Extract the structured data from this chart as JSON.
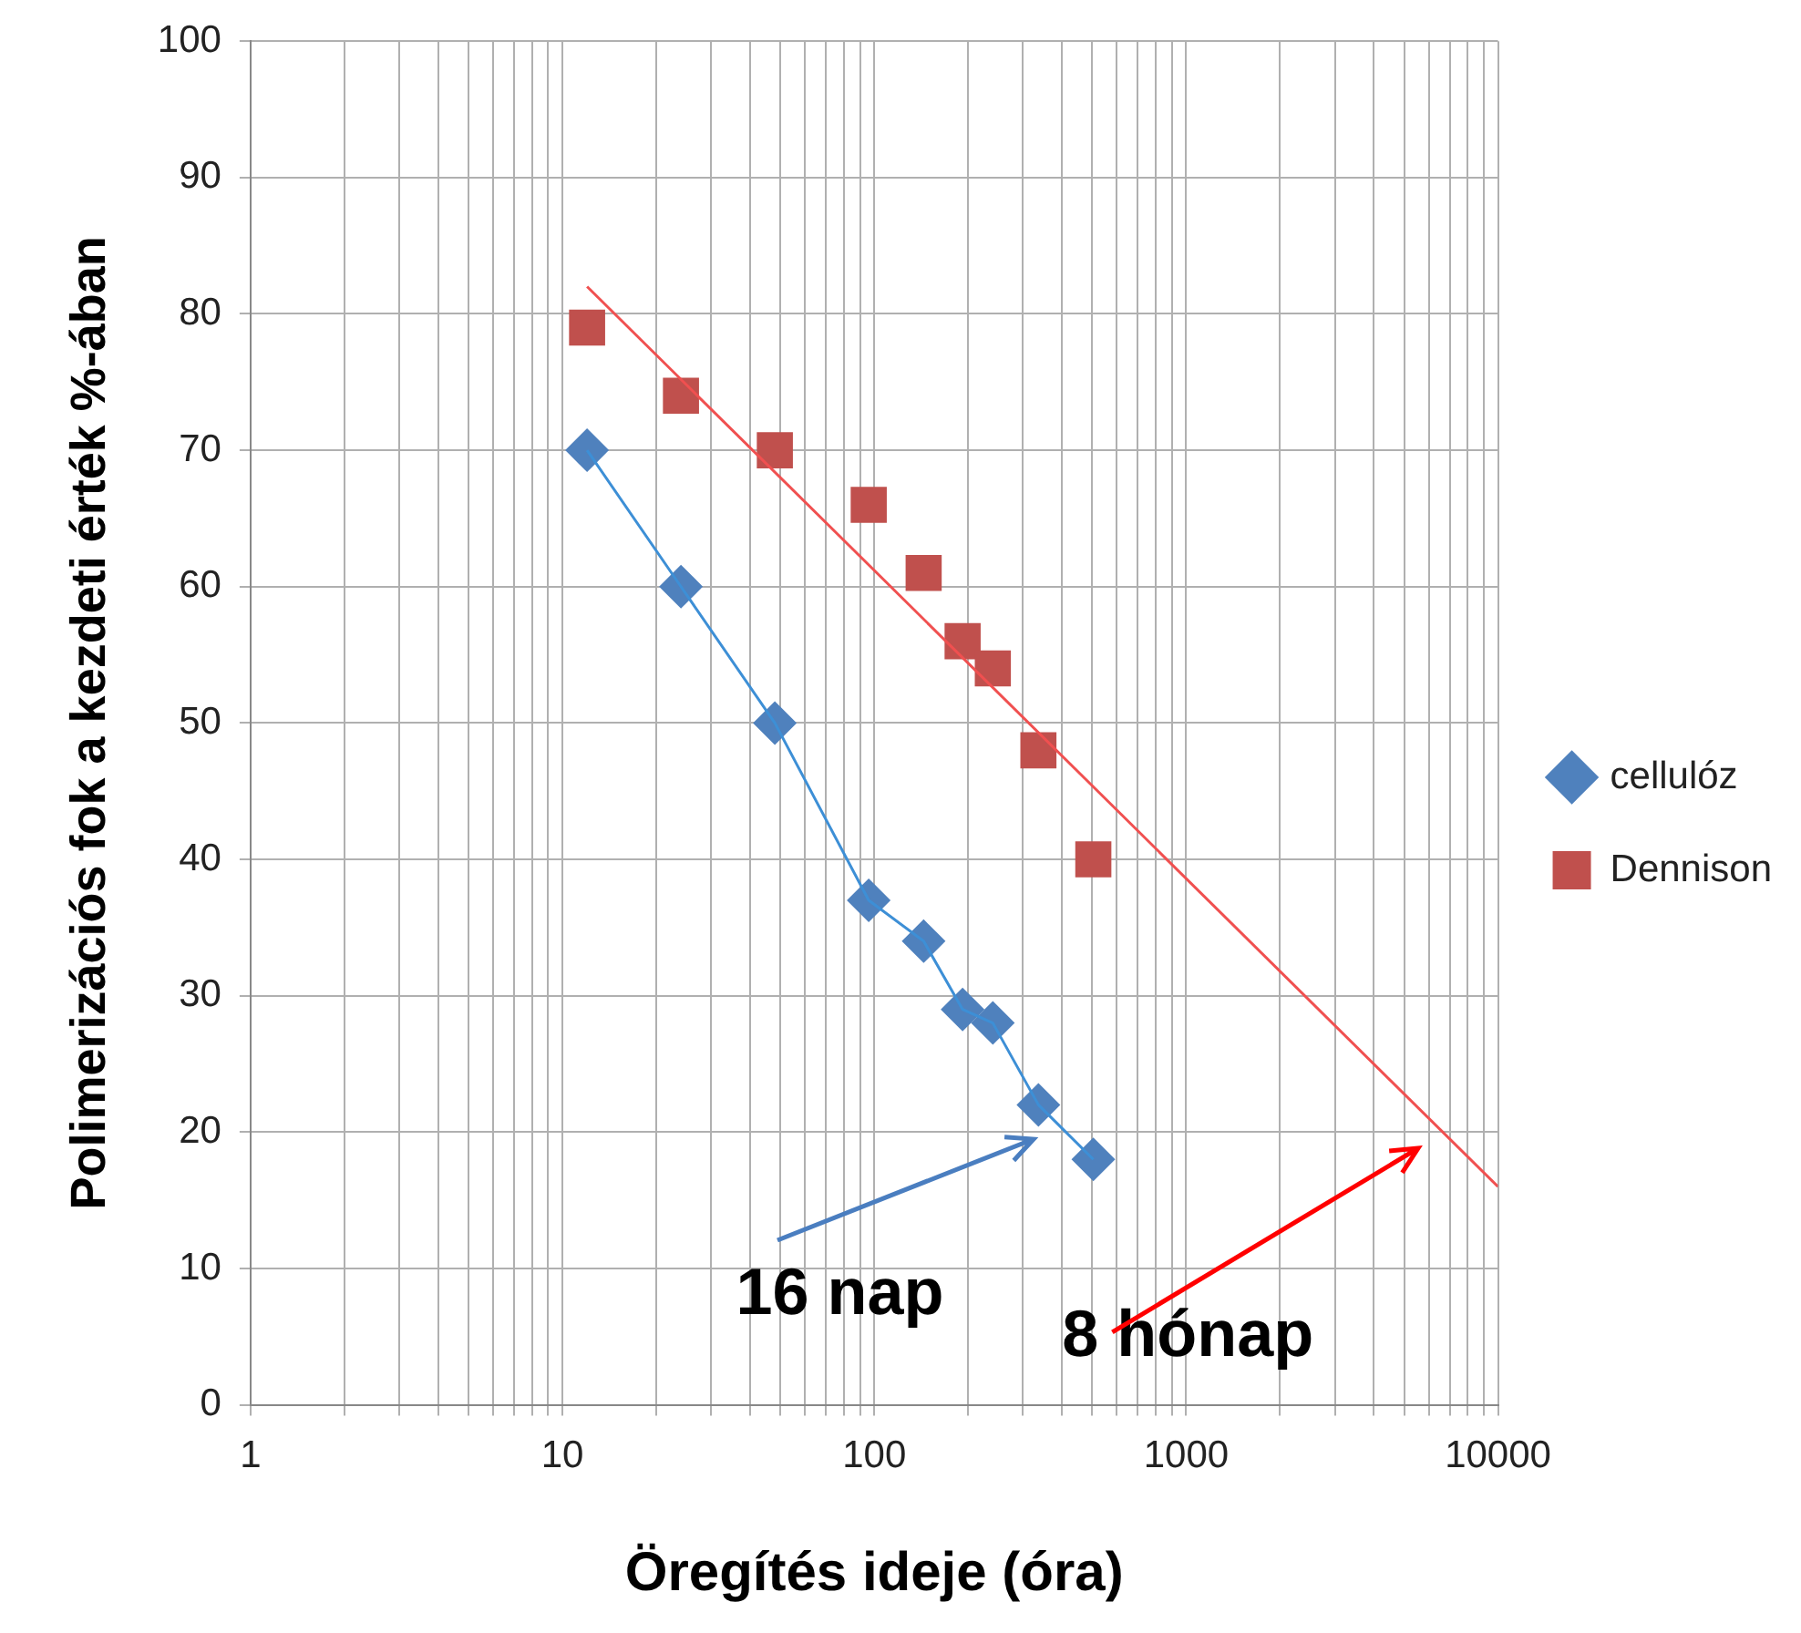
{
  "chart_data": {
    "type": "scatter",
    "xlabel": "Öregítés ideje (óra)",
    "ylabel": "Polimerizációs fok a kezdeti érték %-ában",
    "log": "x",
    "grid": true,
    "legend": "right",
    "xlim": [
      1,
      10000
    ],
    "ylim": [
      0,
      100
    ],
    "xticks": [
      1,
      {
        "value": 2,
        "label": null
      },
      {
        "value": 3,
        "label": null
      },
      {
        "value": 4,
        "label": null
      },
      {
        "value": 5,
        "label": null
      },
      {
        "value": 6,
        "label": null
      },
      {
        "value": 7,
        "label": null
      },
      {
        "value": 8,
        "label": null
      },
      {
        "value": 9,
        "label": null
      },
      10,
      {
        "value": 20,
        "label": null
      },
      {
        "value": 30,
        "label": null
      },
      {
        "value": 40,
        "label": null
      },
      {
        "value": 50,
        "label": null
      },
      {
        "value": 60,
        "label": null
      },
      {
        "value": 70,
        "label": null
      },
      {
        "value": 80,
        "label": null
      },
      {
        "value": 90,
        "label": null
      },
      100,
      {
        "value": 200,
        "label": null
      },
      {
        "value": 300,
        "label": null
      },
      {
        "value": 400,
        "label": null
      },
      {
        "value": 500,
        "label": null
      },
      {
        "value": 600,
        "label": null
      },
      {
        "value": 700,
        "label": null
      },
      {
        "value": 800,
        "label": null
      },
      {
        "value": 900,
        "label": null
      },
      1000,
      {
        "value": 2000,
        "label": null
      },
      {
        "value": 3000,
        "label": null
      },
      {
        "value": 4000,
        "label": null
      },
      {
        "value": 5000,
        "label": null
      },
      {
        "value": 6000,
        "label": null
      },
      {
        "value": 7000,
        "label": null
      },
      {
        "value": 8000,
        "label": null
      },
      {
        "value": 9000,
        "label": null
      },
      10000
    ],
    "yticks": [
      0,
      10,
      20,
      30,
      40,
      50,
      60,
      70,
      80,
      90,
      100
    ],
    "series": [
      {
        "type": "line",
        "color": "#3d8fd6",
        "marker": "none",
        "x": [
          12,
          24,
          48,
          96,
          144,
          192,
          240,
          336,
          504
        ],
        "values": [
          70,
          60,
          50,
          37,
          34,
          29,
          28,
          22,
          18
        ]
      },
      {
        "type": "line",
        "color": "#f05050",
        "marker": "none",
        "x": [
          12,
          10000
        ],
        "values": [
          82,
          16
        ]
      },
      {
        "name": "cellulóz",
        "color": "#4f81bd",
        "marker": "diamond",
        "x": [
          12,
          24,
          48,
          96,
          144,
          192,
          240,
          336,
          504
        ],
        "values": [
          70,
          60,
          50,
          37,
          34,
          29,
          28,
          22,
          18
        ]
      },
      {
        "name": "Dennison",
        "color": "#c0504d",
        "marker": "square",
        "x": [
          12,
          24,
          48,
          96,
          144,
          192,
          240,
          336,
          504
        ],
        "values": [
          79,
          74,
          70,
          66,
          61,
          56,
          54,
          48,
          40
        ]
      }
    ],
    "annotations": [
      "16 nap",
      "8 hónap"
    ]
  }
}
